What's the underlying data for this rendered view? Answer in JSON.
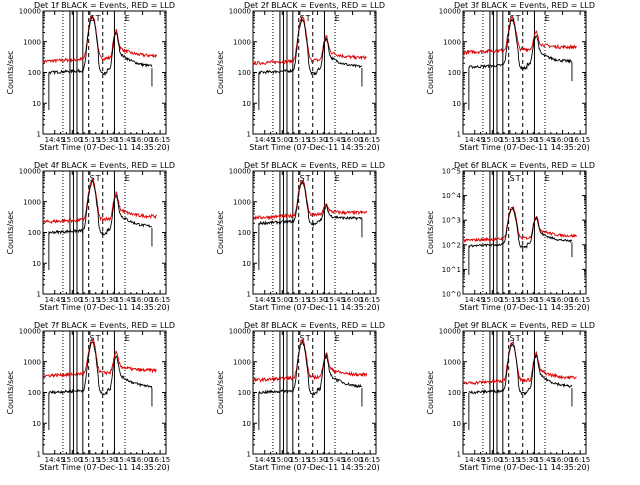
{
  "chart_data": [
    {
      "type": "line",
      "title": "Det 1f BLACK = Events, RED = LLD",
      "xlabel": "Start Time (07-Dec-11 14:35:20)",
      "ylabel": "Counts/sec",
      "yscale": "log",
      "ylim": [
        1,
        10000
      ],
      "ytick_labels": [
        "1",
        "10",
        "100",
        "1000",
        "10000"
      ],
      "xtick_labels": [
        "14:45",
        "15:00",
        "15:15",
        "15:30",
        "15:45",
        "16:00",
        "16:15"
      ],
      "xlim": [
        "14:35",
        "16:20"
      ],
      "region_labels": [
        "S",
        "T",
        "E"
      ],
      "lld_base": 230,
      "events_base": 100,
      "peak1": 7000,
      "peak2": 1800,
      "series": []
    },
    {
      "type": "line",
      "title": "Det 2f BLACK = Events, RED = LLD",
      "xlabel": "Start Time (07-Dec-11 14:35:20)",
      "ylabel": "Counts/sec",
      "yscale": "log",
      "ylim": [
        1,
        10000
      ],
      "ytick_labels": [
        "1",
        "10",
        "100",
        "1000",
        "10000"
      ],
      "xtick_labels": [
        "14:45",
        "15:00",
        "15:15",
        "15:30",
        "15:45",
        "16:00",
        "16:15"
      ],
      "xlim": [
        "14:35",
        "16:20"
      ],
      "region_labels": [
        "S",
        "T",
        "E"
      ],
      "lld_base": 200,
      "events_base": 100,
      "peak1": 6000,
      "peak2": 1200,
      "series": []
    },
    {
      "type": "line",
      "title": "Det 3f BLACK = Events, RED = LLD",
      "xlabel": "Start Time (07-Dec-11 14:35:20)",
      "ylabel": "Counts/sec",
      "yscale": "log",
      "ylim": [
        1,
        10000
      ],
      "ytick_labels": [
        "1",
        "10",
        "100",
        "1000",
        "10000"
      ],
      "xtick_labels": [
        "14:45",
        "15:00",
        "15:15",
        "15:30",
        "15:45",
        "16:00",
        "16:15"
      ],
      "xlim": [
        "14:35",
        "16:20"
      ],
      "region_labels": [
        "S",
        "T",
        "E"
      ],
      "lld_base": 450,
      "events_base": 150,
      "peak1": 6000,
      "peak2": 1500,
      "series": []
    },
    {
      "type": "line",
      "title": "Det 4f BLACK = Events, RED = LLD",
      "xlabel": "Start Time (07-Dec-11 14:35:20)",
      "ylabel": "Counts/sec",
      "yscale": "log",
      "ylim": [
        1,
        10000
      ],
      "ytick_labels": [
        "1",
        "10",
        "100",
        "1000",
        "10000"
      ],
      "xtick_labels": [
        "14:45",
        "15:00",
        "15:15",
        "15:30",
        "15:45",
        "16:00",
        "16:15"
      ],
      "xlim": [
        "14:35",
        "16:20"
      ],
      "region_labels": [
        "S",
        "T",
        "E"
      ],
      "lld_base": 220,
      "events_base": 100,
      "peak1": 5000,
      "peak2": 1500,
      "series": []
    },
    {
      "type": "line",
      "title": "Det 5f BLACK = Events, RED = LLD",
      "xlabel": "Start Time (07-Dec-11 14:35:20)",
      "ylabel": "Counts/sec",
      "yscale": "log",
      "ylim": [
        1,
        10000
      ],
      "ytick_labels": [
        "1",
        "10",
        "100",
        "1000",
        "10000"
      ],
      "xtick_labels": [
        "14:45",
        "15:00",
        "15:15",
        "15:30",
        "15:45",
        "16:00",
        "16:15"
      ],
      "xlim": [
        "14:35",
        "16:20"
      ],
      "region_labels": [
        "S",
        "T",
        "E"
      ],
      "lld_base": 300,
      "events_base": 200,
      "peak1": 5000,
      "peak2": 550,
      "series": []
    },
    {
      "type": "line",
      "title": "Det 6f BLACK = Events, RED = LLD",
      "xlabel": "Start Time (07-Dec-11 14:35:20)",
      "ylabel": "Counts/sec",
      "yscale": "log",
      "ylim": [
        1,
        100000
      ],
      "ytick_labels": [
        "10^0",
        "10^1",
        "10^2",
        "10^3",
        "10^4",
        "10^5"
      ],
      "xtick_labels": [
        "14:45",
        "15:00",
        "15:15",
        "15:30",
        "15:45",
        "16:00",
        "16:15"
      ],
      "xlim": [
        "14:35",
        "16:20"
      ],
      "region_labels": [
        "S",
        "T",
        "E"
      ],
      "lld_base": 150,
      "events_base": 90,
      "peak1": 3500,
      "peak2": 1200,
      "series": []
    },
    {
      "type": "line",
      "title": "Det 7f BLACK = Events, RED = LLD",
      "xlabel": "Start Time (07-Dec-11 14:35:20)",
      "ylabel": "Counts/sec",
      "yscale": "log",
      "ylim": [
        1,
        10000
      ],
      "ytick_labels": [
        "1",
        "10",
        "100",
        "1000",
        "10000"
      ],
      "xtick_labels": [
        "14:45",
        "15:00",
        "15:15",
        "15:30",
        "15:45",
        "16:00",
        "16:15"
      ],
      "xlim": [
        "14:35",
        "16:20"
      ],
      "region_labels": [
        "S",
        "T",
        "E"
      ],
      "lld_base": 350,
      "events_base": 100,
      "peak1": 5000,
      "peak2": 1500,
      "series": []
    },
    {
      "type": "line",
      "title": "Det 8f BLACK = Events, RED = LLD",
      "xlabel": "Start Time (07-Dec-11 14:35:20)",
      "ylabel": "Counts/sec",
      "yscale": "log",
      "ylim": [
        1,
        10000
      ],
      "ytick_labels": [
        "1",
        "10",
        "100",
        "1000",
        "10000"
      ],
      "xtick_labels": [
        "14:45",
        "15:00",
        "15:15",
        "15:30",
        "15:45",
        "16:00",
        "16:15"
      ],
      "xlim": [
        "14:35",
        "16:20"
      ],
      "region_labels": [
        "S",
        "T",
        "E"
      ],
      "lld_base": 250,
      "events_base": 100,
      "peak1": 5000,
      "peak2": 1500,
      "series": []
    },
    {
      "type": "line",
      "title": "Det 9f BLACK = Events, RED = LLD",
      "xlabel": "Start Time (07-Dec-11 14:35:20)",
      "ylabel": "Counts/sec",
      "yscale": "log",
      "ylim": [
        1,
        10000
      ],
      "ytick_labels": [
        "1",
        "10",
        "100",
        "1000",
        "10000"
      ],
      "xtick_labels": [
        "14:45",
        "15:00",
        "15:15",
        "15:30",
        "15:45",
        "16:00",
        "16:15"
      ],
      "xlim": [
        "14:35",
        "16:20"
      ],
      "region_labels": [
        "S",
        "T",
        "E"
      ],
      "lld_base": 200,
      "events_base": 100,
      "peak1": 4500,
      "peak2": 1500,
      "series": []
    }
  ],
  "colors": {
    "events": "#000000",
    "lld": "#dd0000",
    "axis": "#000000",
    "background": "#ffffff"
  }
}
